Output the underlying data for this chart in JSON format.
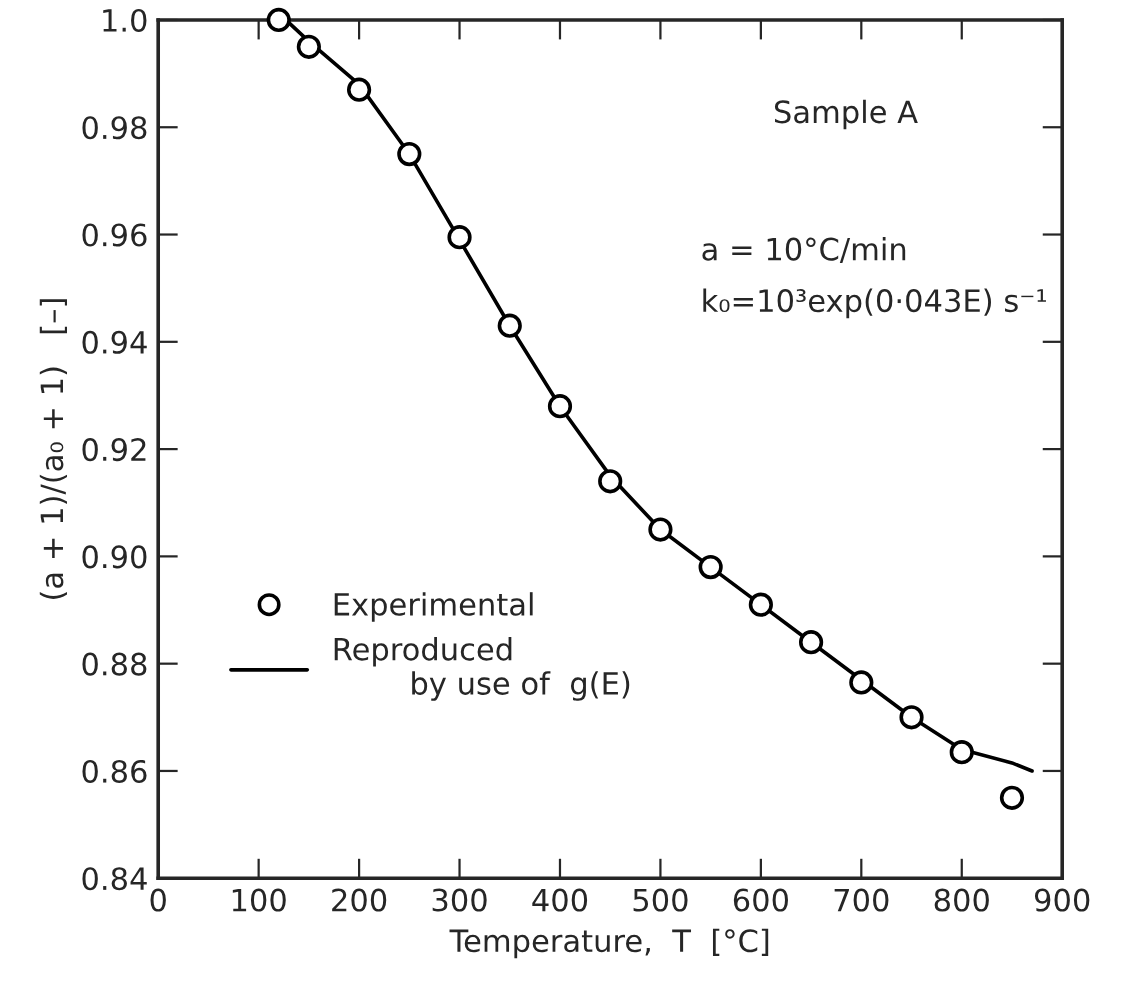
{
  "chart_data": {
    "type": "scatter",
    "xlabel": "Temperature,  T  [°C]",
    "ylabel": "(a + 1)/(a₀ + 1)   [–]",
    "annotations": [
      "Sample A",
      "a = 10°C/min",
      "k₀=10³exp(0·043E) s⁻¹"
    ],
    "series": [
      {
        "name": "Experimental",
        "color": "#000000",
        "marker": "circle",
        "x": [
          120,
          150,
          200,
          250,
          300,
          350,
          400,
          450,
          500,
          550,
          600,
          650,
          700,
          750,
          800,
          850
        ],
        "values": [
          1.0,
          0.995,
          0.987,
          0.975,
          0.9595,
          0.943,
          0.928,
          0.914,
          0.905,
          0.898,
          0.891,
          0.884,
          0.8765,
          0.87,
          0.8635,
          0.855
        ]
      },
      {
        "name": "Reproduced\n        by use of  g(E)",
        "type": "line",
        "color": "#000000",
        "line_style": "solid",
        "x": [
          130,
          150,
          200,
          250,
          300,
          350,
          400,
          450,
          500,
          550,
          600,
          650,
          700,
          750,
          800,
          850,
          870
        ],
        "values": [
          0.9995,
          0.996,
          0.988,
          0.975,
          0.959,
          0.943,
          0.928,
          0.915,
          0.905,
          0.898,
          0.891,
          0.884,
          0.877,
          0.87,
          0.864,
          0.8615,
          0.86
        ]
      }
    ],
    "xlim": [
      0,
      900
    ],
    "xticks": [
      0,
      100,
      200,
      300,
      400,
      500,
      600,
      700,
      800,
      900
    ],
    "ylim": [
      0.84,
      1.0
    ],
    "yticks": [
      0.84,
      0.86,
      0.88,
      {
        "value": 0.9,
        "label": "0.90"
      },
      0.92,
      0.94,
      0.96,
      0.98,
      {
        "value": 1.0,
        "label": "1.0"
      }
    ],
    "legend": "left",
    "grid": false
  }
}
